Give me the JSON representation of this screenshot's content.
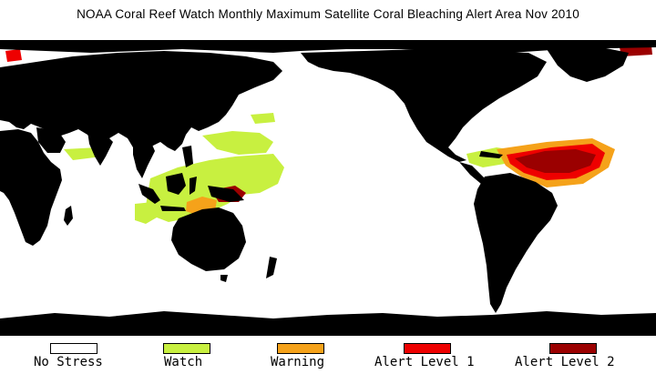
{
  "title": "NOAA Coral Reef Watch Monthly Maximum Satellite Coral Bleaching Alert Area    Nov 2010",
  "colors": {
    "ocean": "#ffffff",
    "land": "#000000",
    "no_stress": "#ffffff",
    "watch": "#c8f040",
    "warning": "#f5a21a",
    "alert1": "#ee0000",
    "alert2": "#9b0000"
  },
  "legend": [
    {
      "label": "No Stress",
      "color": "#ffffff"
    },
    {
      "label": "Watch",
      "color": "#c8f040"
    },
    {
      "label": "Warning",
      "color": "#f5a21a"
    },
    {
      "label": "Alert Level 1",
      "color": "#ee0000"
    },
    {
      "label": "Alert Level 2",
      "color": "#9b0000"
    }
  ]
}
